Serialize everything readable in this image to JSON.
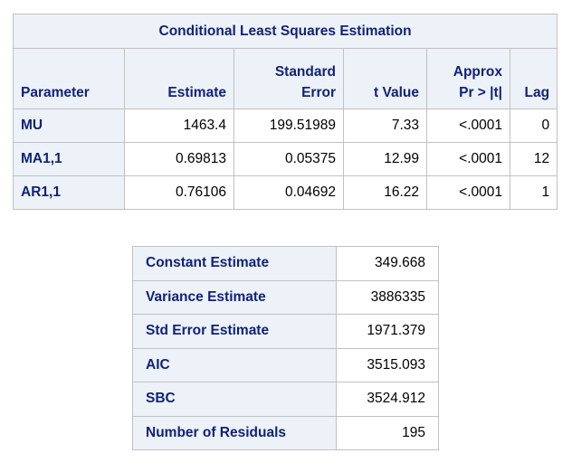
{
  "estimation": {
    "title": "Conditional Least Squares Estimation",
    "columns": {
      "parameter": "Parameter",
      "estimate": "Estimate",
      "std_error_line1": "Standard",
      "std_error_line2": "Error",
      "t_value": "t Value",
      "approx_line1": "Approx",
      "approx_line2": "Pr > |t|",
      "lag": "Lag"
    },
    "rows": [
      {
        "parameter": "MU",
        "estimate": "1463.4",
        "std_error": "199.51989",
        "t_value": "7.33",
        "p_value": "<.0001",
        "lag": "0"
      },
      {
        "parameter": "MA1,1",
        "estimate": "0.69813",
        "std_error": "0.05375",
        "t_value": "12.99",
        "p_value": "<.0001",
        "lag": "12"
      },
      {
        "parameter": "AR1,1",
        "estimate": "0.76106",
        "std_error": "0.04692",
        "t_value": "16.22",
        "p_value": "<.0001",
        "lag": "1"
      }
    ]
  },
  "fit_statistics": {
    "rows": [
      {
        "label": "Constant Estimate",
        "value": "349.668"
      },
      {
        "label": "Variance Estimate",
        "value": "3886335"
      },
      {
        "label": "Std Error Estimate",
        "value": "1971.379"
      },
      {
        "label": "AIC",
        "value": "3515.093"
      },
      {
        "label": "SBC",
        "value": "3524.912"
      },
      {
        "label": "Number of Residuals",
        "value": "195"
      }
    ]
  },
  "colors": {
    "header_background": "#edf2f9",
    "header_text": "#112277",
    "border": "#c1c1c1"
  }
}
